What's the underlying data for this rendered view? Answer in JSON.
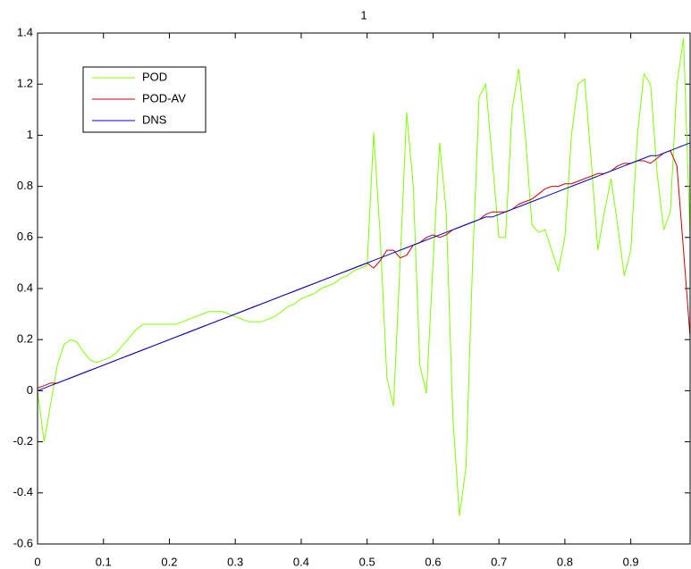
{
  "chart_data": {
    "type": "line",
    "title": "1",
    "x": [
      0,
      0.01,
      0.02,
      0.03,
      0.04,
      0.05,
      0.06,
      0.07,
      0.08,
      0.09,
      0.1,
      0.11,
      0.12,
      0.13,
      0.14,
      0.15,
      0.16,
      0.17,
      0.18,
      0.19,
      0.2,
      0.21,
      0.22,
      0.23,
      0.24,
      0.25,
      0.26,
      0.27,
      0.28,
      0.29,
      0.3,
      0.31,
      0.32,
      0.33,
      0.34,
      0.35,
      0.36,
      0.37,
      0.38,
      0.39,
      0.4,
      0.41,
      0.42,
      0.43,
      0.44,
      0.45,
      0.46,
      0.47,
      0.48,
      0.49,
      0.5,
      0.51,
      0.52,
      0.53,
      0.54,
      0.55,
      0.56,
      0.57,
      0.58,
      0.59,
      0.6,
      0.61,
      0.62,
      0.63,
      0.64,
      0.65,
      0.66,
      0.67,
      0.68,
      0.69,
      0.7,
      0.71,
      0.72,
      0.73,
      0.74,
      0.75,
      0.76,
      0.77,
      0.78,
      0.79,
      0.8,
      0.81,
      0.82,
      0.83,
      0.84,
      0.85,
      0.86,
      0.87,
      0.88,
      0.89,
      0.9,
      0.91,
      0.92,
      0.93,
      0.94,
      0.95,
      0.96,
      0.97,
      0.98,
      0.99
    ],
    "series": [
      {
        "name": "POD",
        "color": "#7fff00",
        "values": [
          0,
          -0.2,
          -0.05,
          0.1,
          0.18,
          0.2,
          0.19,
          0.15,
          0.12,
          0.11,
          0.12,
          0.13,
          0.15,
          0.18,
          0.21,
          0.24,
          0.26,
          0.26,
          0.26,
          0.26,
          0.26,
          0.26,
          0.27,
          0.28,
          0.29,
          0.3,
          0.31,
          0.31,
          0.31,
          0.3,
          0.29,
          0.28,
          0.27,
          0.27,
          0.27,
          0.28,
          0.29,
          0.31,
          0.33,
          0.34,
          0.36,
          0.37,
          0.38,
          0.4,
          0.41,
          0.42,
          0.44,
          0.45,
          0.47,
          0.48,
          0.49,
          1.01,
          0.6,
          0.05,
          -0.06,
          0.5,
          1.09,
          0.8,
          0.1,
          -0.01,
          0.5,
          0.97,
          0.7,
          -0.1,
          -0.49,
          -0.3,
          0.5,
          1.15,
          1.2,
          0.9,
          0.6,
          0.6,
          1.1,
          1.26,
          1.0,
          0.65,
          0.62,
          0.63,
          0.55,
          0.47,
          0.6,
          1.0,
          1.2,
          1.22,
          0.9,
          0.55,
          0.7,
          0.83,
          0.65,
          0.45,
          0.55,
          1.0,
          1.24,
          1.2,
          0.85,
          0.63,
          0.7,
          1.2,
          1.38,
          0.6
        ]
      },
      {
        "name": "POD-AV",
        "color": "#cc0000",
        "values": [
          0.01,
          0.02,
          0.03,
          0.03,
          0.04,
          0.05,
          0.06,
          0.07,
          0.08,
          0.09,
          0.1,
          0.11,
          0.12,
          0.13,
          0.14,
          0.15,
          0.16,
          0.17,
          0.18,
          0.19,
          0.2,
          0.21,
          0.22,
          0.23,
          0.24,
          0.25,
          0.26,
          0.27,
          0.28,
          0.29,
          0.3,
          0.31,
          0.32,
          0.33,
          0.34,
          0.35,
          0.36,
          0.37,
          0.38,
          0.39,
          0.4,
          0.41,
          0.42,
          0.43,
          0.44,
          0.45,
          0.46,
          0.47,
          0.48,
          0.49,
          0.5,
          0.48,
          0.51,
          0.55,
          0.55,
          0.52,
          0.53,
          0.57,
          0.58,
          0.6,
          0.61,
          0.6,
          0.61,
          0.63,
          0.64,
          0.65,
          0.66,
          0.67,
          0.69,
          0.7,
          0.7,
          0.7,
          0.71,
          0.73,
          0.74,
          0.75,
          0.77,
          0.79,
          0.8,
          0.8,
          0.81,
          0.81,
          0.82,
          0.83,
          0.84,
          0.85,
          0.85,
          0.86,
          0.88,
          0.89,
          0.89,
          0.9,
          0.9,
          0.89,
          0.91,
          0.93,
          0.94,
          0.88,
          0.55,
          0.21
        ]
      },
      {
        "name": "DNS",
        "color": "#0000cc",
        "values": [
          0,
          0.01,
          0.02,
          0.03,
          0.04,
          0.05,
          0.06,
          0.07,
          0.08,
          0.09,
          0.1,
          0.11,
          0.12,
          0.13,
          0.14,
          0.15,
          0.16,
          0.17,
          0.18,
          0.19,
          0.2,
          0.21,
          0.22,
          0.23,
          0.24,
          0.25,
          0.26,
          0.27,
          0.28,
          0.29,
          0.3,
          0.31,
          0.32,
          0.33,
          0.34,
          0.35,
          0.36,
          0.37,
          0.38,
          0.39,
          0.4,
          0.41,
          0.42,
          0.43,
          0.44,
          0.45,
          0.46,
          0.47,
          0.48,
          0.49,
          0.5,
          0.51,
          0.52,
          0.53,
          0.54,
          0.55,
          0.56,
          0.57,
          0.58,
          0.59,
          0.6,
          0.61,
          0.62,
          0.63,
          0.64,
          0.65,
          0.66,
          0.67,
          0.68,
          0.68,
          0.69,
          0.7,
          0.71,
          0.72,
          0.73,
          0.74,
          0.75,
          0.76,
          0.77,
          0.78,
          0.79,
          0.8,
          0.81,
          0.82,
          0.83,
          0.84,
          0.85,
          0.86,
          0.87,
          0.88,
          0.89,
          0.9,
          0.91,
          0.92,
          0.92,
          0.93,
          0.94,
          0.95,
          0.96,
          0.97
        ]
      }
    ],
    "xlim": [
      0,
      0.99
    ],
    "ylim": [
      -0.6,
      1.4
    ],
    "xticks": [
      0,
      0.1,
      0.2,
      0.3,
      0.4,
      0.5,
      0.6,
      0.7,
      0.8,
      0.9
    ],
    "yticks": [
      -0.6,
      -0.4,
      -0.2,
      0,
      0.2,
      0.4,
      0.6,
      0.8,
      1,
      1.2,
      1.4
    ],
    "legend": "upper left",
    "grid": false
  }
}
